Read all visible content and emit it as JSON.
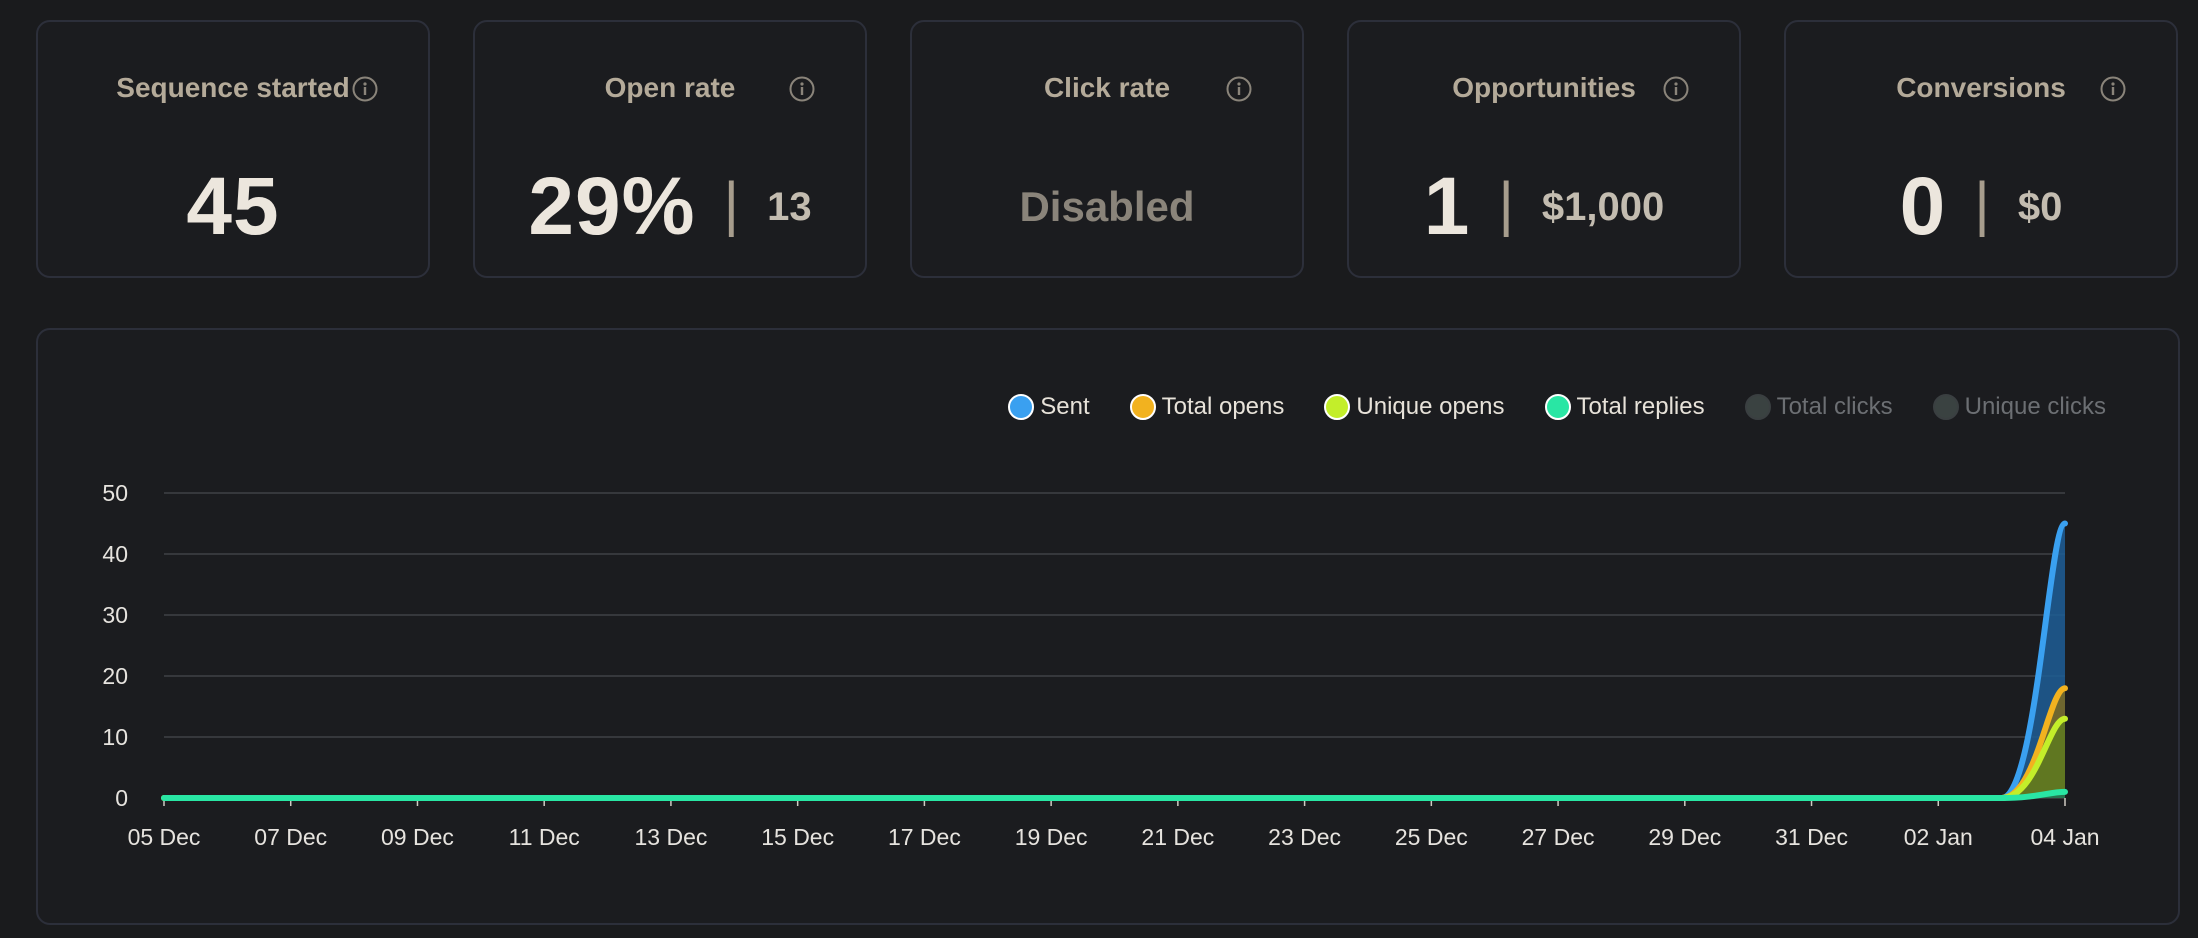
{
  "cards": [
    {
      "title": "Sequence started",
      "value": "45",
      "secondary": "",
      "disabled_text": ""
    },
    {
      "title": "Open rate",
      "value": "29%",
      "secondary": "13",
      "disabled_text": ""
    },
    {
      "title": "Click rate",
      "value": "",
      "secondary": "",
      "disabled_text": "Disabled"
    },
    {
      "title": "Opportunities",
      "value": "1",
      "secondary": "$1,000",
      "disabled_text": ""
    },
    {
      "title": "Conversions",
      "value": "0",
      "secondary": "$0",
      "disabled_text": ""
    }
  ],
  "separator": "|",
  "icons": {
    "info": "info-icon"
  },
  "legend": [
    {
      "label": "Sent",
      "color": "#3aa0f0",
      "active": true
    },
    {
      "label": "Total opens",
      "color": "#f2b21f",
      "active": true
    },
    {
      "label": "Unique opens",
      "color": "#c3ee2a",
      "active": true
    },
    {
      "label": "Total replies",
      "color": "#29e6a4",
      "active": true
    },
    {
      "label": "Total clicks",
      "color": "#3a4241",
      "active": false
    },
    {
      "label": "Unique clicks",
      "color": "#3a4241",
      "active": false
    }
  ],
  "chart_data": {
    "type": "area",
    "x": [
      "05 Dec",
      "06 Dec",
      "07 Dec",
      "08 Dec",
      "09 Dec",
      "10 Dec",
      "11 Dec",
      "12 Dec",
      "13 Dec",
      "14 Dec",
      "15 Dec",
      "16 Dec",
      "17 Dec",
      "18 Dec",
      "19 Dec",
      "20 Dec",
      "21 Dec",
      "22 Dec",
      "23 Dec",
      "24 Dec",
      "25 Dec",
      "26 Dec",
      "27 Dec",
      "28 Dec",
      "29 Dec",
      "30 Dec",
      "31 Dec",
      "01 Jan",
      "02 Jan",
      "03 Jan",
      "04 Jan"
    ],
    "x_tick_labels": [
      "05 Dec",
      "07 Dec",
      "09 Dec",
      "11 Dec",
      "13 Dec",
      "15 Dec",
      "17 Dec",
      "19 Dec",
      "21 Dec",
      "23 Dec",
      "25 Dec",
      "27 Dec",
      "29 Dec",
      "31 Dec",
      "02 Jan",
      "04 Jan"
    ],
    "y_ticks": [
      0,
      10,
      20,
      30,
      40,
      50
    ],
    "ylim": [
      0,
      50
    ],
    "grid": true,
    "legend_position": "top-right",
    "series": [
      {
        "name": "Sent",
        "color": "#3aa0f0",
        "fill": "#1d5d96",
        "values": [
          0,
          0,
          0,
          0,
          0,
          0,
          0,
          0,
          0,
          0,
          0,
          0,
          0,
          0,
          0,
          0,
          0,
          0,
          0,
          0,
          0,
          0,
          0,
          0,
          0,
          0,
          0,
          0,
          0,
          0,
          45
        ]
      },
      {
        "name": "Total opens",
        "color": "#f2b21f",
        "fill": "#7d6a20",
        "values": [
          0,
          0,
          0,
          0,
          0,
          0,
          0,
          0,
          0,
          0,
          0,
          0,
          0,
          0,
          0,
          0,
          0,
          0,
          0,
          0,
          0,
          0,
          0,
          0,
          0,
          0,
          0,
          0,
          0,
          0,
          18
        ]
      },
      {
        "name": "Unique opens",
        "color": "#c3ee2a",
        "fill": "#5e7a1f",
        "values": [
          0,
          0,
          0,
          0,
          0,
          0,
          0,
          0,
          0,
          0,
          0,
          0,
          0,
          0,
          0,
          0,
          0,
          0,
          0,
          0,
          0,
          0,
          0,
          0,
          0,
          0,
          0,
          0,
          0,
          0,
          13
        ]
      },
      {
        "name": "Total replies",
        "color": "#29e6a4",
        "fill": "#1c7559",
        "values": [
          0,
          0,
          0,
          0,
          0,
          0,
          0,
          0,
          0,
          0,
          0,
          0,
          0,
          0,
          0,
          0,
          0,
          0,
          0,
          0,
          0,
          0,
          0,
          0,
          0,
          0,
          0,
          0,
          0,
          0,
          1
        ]
      }
    ]
  }
}
